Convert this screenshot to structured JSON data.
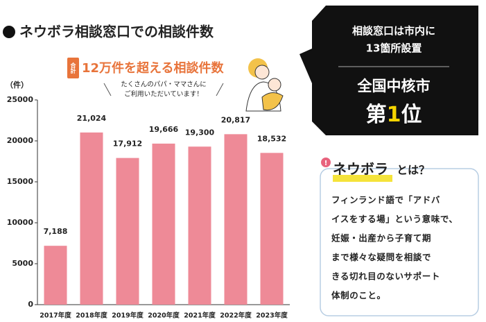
{
  "chart_data": {
    "type": "bar",
    "title": "ネウボラ相談窓口での相談件数",
    "subtitle_badge": "合計",
    "subtitle": "12万件を超える相談件数",
    "annotation": [
      "たくさんのパパ・ママさんに",
      "ご利用いただいています！"
    ],
    "y_label": "（件）",
    "categories": [
      "2017年度",
      "2018年度",
      "2019年度",
      "2020年度",
      "2021年度",
      "2022年度",
      "2023年度"
    ],
    "values": [
      7188,
      21024,
      17912,
      19666,
      19300,
      20817,
      18532
    ],
    "value_labels": [
      "7,188",
      "21,024",
      "17,912",
      "19,666",
      "19,300",
      "20,817",
      "18,532"
    ],
    "color": "#ee8a97",
    "ylim": [
      0,
      25000
    ],
    "yticks": [
      0,
      5000,
      10000,
      15000,
      20000,
      25000
    ],
    "grid": false
  },
  "callout": {
    "line1": "相談窓口は市内に",
    "line2": "13箇所設置",
    "heading": "全国中核市",
    "rank_prefix": "第",
    "rank_number": "1",
    "rank_suffix": "位"
  },
  "info": {
    "title": "ネウボラ",
    "title_suffix": "とは？",
    "body": [
      "フィンランド語で「アドバ",
      "イスをする場」という意味で、",
      "妊娠・出産から子育て期",
      "まで様々な疑問を相談で",
      "きる切れ目のないサポート",
      "体制のこと。"
    ]
  }
}
